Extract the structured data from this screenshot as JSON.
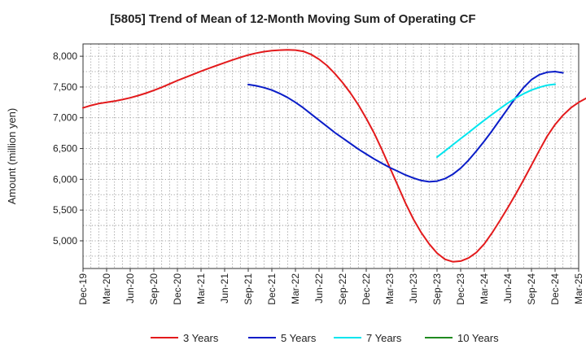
{
  "chart_data": {
    "type": "line",
    "title": "[5805]  Trend of Mean of 12-Month Moving Sum of Operating CF",
    "xlabel": "",
    "ylabel": "Amount (million yen)",
    "ylim": [
      4550,
      8200
    ],
    "yticks": [
      5000,
      5500,
      6000,
      6500,
      7000,
      7500,
      8000
    ],
    "ytick_labels": [
      "5,000",
      "5,500",
      "6,000",
      "6,500",
      "7,000",
      "7,500",
      "8,000"
    ],
    "x_categories": [
      "Dec-19",
      "Mar-20",
      "Jun-20",
      "Sep-20",
      "Dec-20",
      "Mar-21",
      "Jun-21",
      "Sep-21",
      "Dec-21",
      "Mar-22",
      "Jun-22",
      "Sep-22",
      "Dec-22",
      "Mar-23",
      "Jun-23",
      "Sep-23",
      "Dec-23",
      "Mar-24",
      "Jun-24",
      "Sep-24",
      "Dec-24",
      "Mar-25"
    ],
    "grid": true,
    "legend_position": "bottom",
    "series": [
      {
        "name": "3 Years",
        "color": "#e31a1c",
        "start_index": 0,
        "values": [
          7160,
          7200,
          7230,
          7250,
          7270,
          7295,
          7325,
          7360,
          7400,
          7445,
          7495,
          7550,
          7605,
          7655,
          7705,
          7755,
          7805,
          7850,
          7895,
          7940,
          7980,
          8020,
          8050,
          8075,
          8090,
          8100,
          8105,
          8100,
          8080,
          8030,
          7950,
          7850,
          7720,
          7570,
          7400,
          7210,
          6990,
          6750,
          6480,
          6190,
          5900,
          5610,
          5350,
          5130,
          4950,
          4800,
          4700,
          4660,
          4670,
          4720,
          4810,
          4950,
          5130,
          5330,
          5540,
          5760,
          5990,
          6230,
          6470,
          6700,
          6890,
          7040,
          7160,
          7250,
          7320,
          7370
        ]
      },
      {
        "name": "5 Years",
        "color": "#0a1dc8",
        "start_index": 21,
        "values": [
          7540,
          7520,
          7490,
          7450,
          7395,
          7330,
          7250,
          7160,
          7060,
          6960,
          6860,
          6760,
          6670,
          6580,
          6490,
          6410,
          6330,
          6260,
          6190,
          6130,
          6070,
          6020,
          5980,
          5960,
          5970,
          6010,
          6080,
          6180,
          6310,
          6460,
          6620,
          6790,
          6970,
          7150,
          7330,
          7490,
          7620,
          7700,
          7740,
          7750,
          7730
        ]
      },
      {
        "name": "7 Years",
        "color": "#00e5ee",
        "start_index": 45,
        "values": [
          6360,
          6460,
          6560,
          6660,
          6760,
          6860,
          6960,
          7055,
          7150,
          7240,
          7320,
          7390,
          7450,
          7495,
          7530,
          7545
        ]
      },
      {
        "name": "10 Years",
        "color": "#1f8a1f",
        "start_index": 0,
        "values": []
      }
    ]
  }
}
